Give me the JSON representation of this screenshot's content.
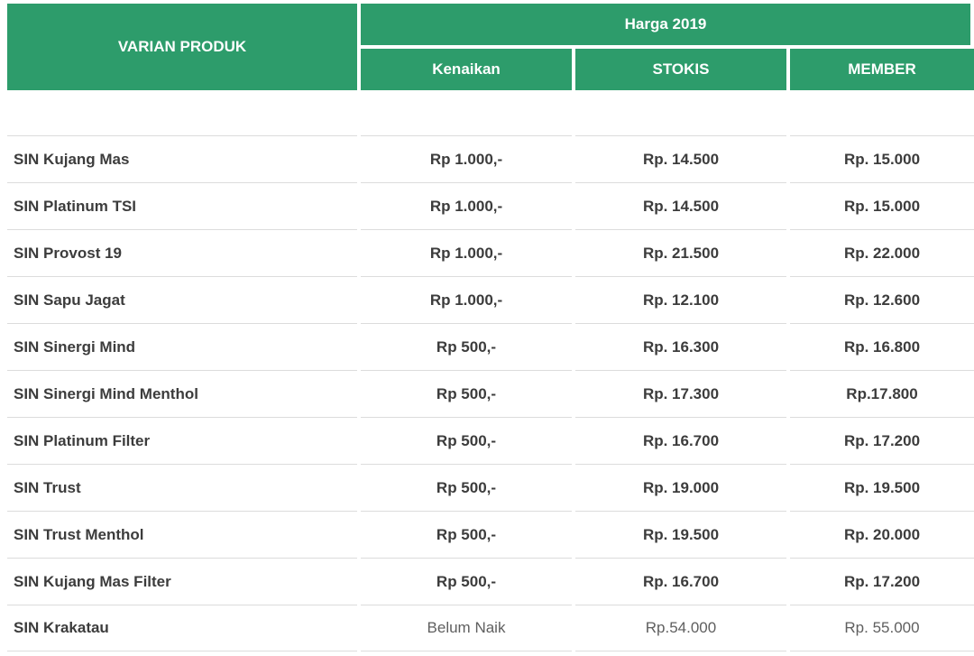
{
  "colors": {
    "header_green": "#2d9c6b",
    "header_text": "#ffffff",
    "row_text": "#3c3c3c",
    "muted_text": "#5f5f5f",
    "border": "#dcdcdc"
  },
  "table": {
    "header": {
      "product_col": "VARIAN PRODUK",
      "group_label": "Harga 2019",
      "subcols": [
        "Kenaikan",
        "STOKIS",
        "MEMBER"
      ]
    },
    "rows": [
      {
        "product": "SIN Kujang Mas",
        "kenaikan": "Rp 1.000,-",
        "stokis": "Rp. 14.500",
        "member": "Rp. 15.000"
      },
      {
        "product": "SIN Platinum TSI",
        "kenaikan": "Rp 1.000,-",
        "stokis": "Rp. 14.500",
        "member": "Rp. 15.000"
      },
      {
        "product": "SIN Provost 19",
        "kenaikan": "Rp 1.000,-",
        "stokis": "Rp. 21.500",
        "member": "Rp. 22.000"
      },
      {
        "product": "SIN Sapu Jagat",
        "kenaikan": "Rp 1.000,-",
        "stokis": "Rp. 12.100",
        "member": "Rp. 12.600"
      },
      {
        "product": "SIN Sinergi Mind",
        "kenaikan": "Rp 500,-",
        "stokis": "Rp. 16.300",
        "member": "Rp. 16.800"
      },
      {
        "product": "SIN Sinergi Mind Menthol",
        "kenaikan": "Rp 500,-",
        "stokis": "Rp. 17.300",
        "member": "Rp.17.800"
      },
      {
        "product": "SIN Platinum Filter",
        "kenaikan": "Rp 500,-",
        "stokis": "Rp. 16.700",
        "member": "Rp. 17.200"
      },
      {
        "product": "SIN Trust",
        "kenaikan": "Rp 500,-",
        "stokis": "Rp. 19.000",
        "member": "Rp. 19.500"
      },
      {
        "product": "SIN Trust Menthol",
        "kenaikan": "Rp 500,-",
        "stokis": "Rp. 19.500",
        "member": "Rp. 20.000"
      },
      {
        "product": "SIN Kujang Mas Filter",
        "kenaikan": "Rp 500,-",
        "stokis": "Rp. 16.700",
        "member": "Rp. 17.200"
      },
      {
        "product": "SIN Krakatau",
        "kenaikan": "Belum Naik",
        "stokis": "Rp.54.000",
        "member": "Rp. 55.000"
      }
    ]
  }
}
